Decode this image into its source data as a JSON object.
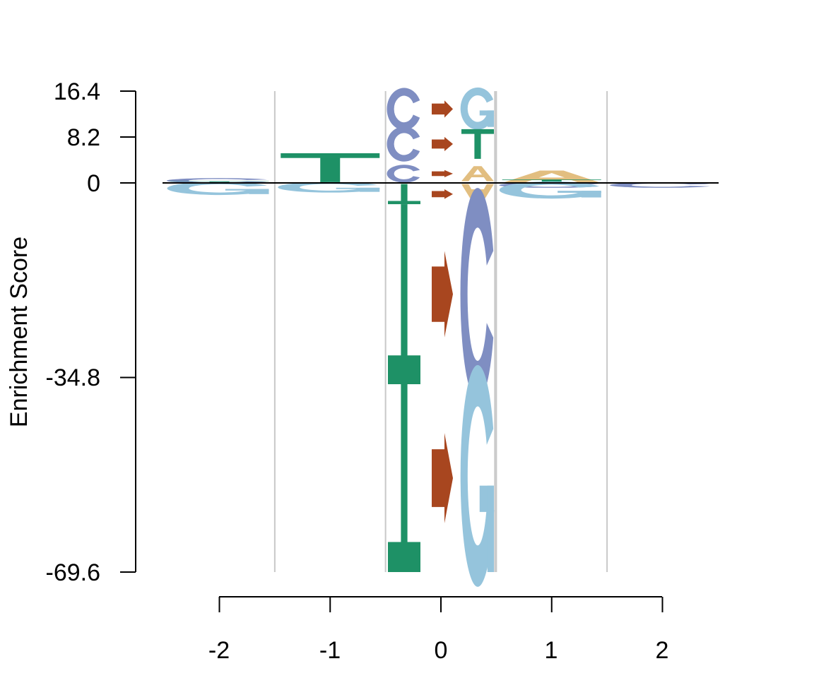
{
  "chart_data": {
    "type": "sequence-logo",
    "ylabel": "Enrichment Score",
    "y_ticks": [
      "16.4",
      "8.2",
      "0",
      "-34.8",
      "-69.6"
    ],
    "y_tick_values": [
      16.4,
      8.2,
      0,
      -34.8,
      -69.6
    ],
    "ylim": [
      -69.6,
      16.4
    ],
    "x_ticks": [
      "-2",
      "-1",
      "0",
      "1",
      "2"
    ],
    "x_tick_values": [
      -2,
      -1,
      0,
      1,
      2
    ],
    "xlim": [
      -2,
      2
    ],
    "grid": "vertical",
    "colors": {
      "A": "#E2BE80",
      "C": "#7F8EC2",
      "G": "#95C4DC",
      "T": "#1E9166",
      "arrow": "#A8461F"
    },
    "positions": [
      {
        "position": -2,
        "letters": [
          {
            "base": "C",
            "from": 0,
            "to": 0.8
          },
          {
            "base": "T",
            "from": 0,
            "to": 0.3
          },
          {
            "base": "G",
            "from": 0,
            "to": -2.0
          }
        ]
      },
      {
        "position": -1,
        "letters": [
          {
            "base": "T",
            "from": 0,
            "to": 5.3
          },
          {
            "base": "G",
            "from": 0,
            "to": -1.6
          }
        ]
      },
      {
        "position": 1,
        "letters": [
          {
            "base": "A",
            "from": 0,
            "to": 2.2
          },
          {
            "base": "T",
            "from": 0,
            "to": 0.6
          },
          {
            "base": "C",
            "from": 0,
            "to": -0.8
          },
          {
            "base": "G",
            "from": 0,
            "to": -2.6
          }
        ]
      },
      {
        "position": 2,
        "letters": [
          {
            "base": "C",
            "from": 0,
            "to": -0.8
          }
        ]
      }
    ],
    "substitutions": [
      {
        "from_base": "C",
        "to_base": "G",
        "range": [
          10.0,
          16.4
        ]
      },
      {
        "from_base": "C",
        "to_base": "T",
        "range": [
          4.3,
          9.6
        ]
      },
      {
        "from_base": "C",
        "to_base": "A",
        "range": [
          0.3,
          3.0
        ]
      },
      {
        "from_base": "T",
        "to_base": "A",
        "range": [
          -0.2,
          -3.8
        ]
      },
      {
        "from_base": "T",
        "to_base": "C",
        "range": [
          -3.8,
          -36.0
        ]
      },
      {
        "from_base": "T",
        "to_base": "G",
        "range": [
          -36.0,
          -69.6
        ]
      }
    ]
  }
}
